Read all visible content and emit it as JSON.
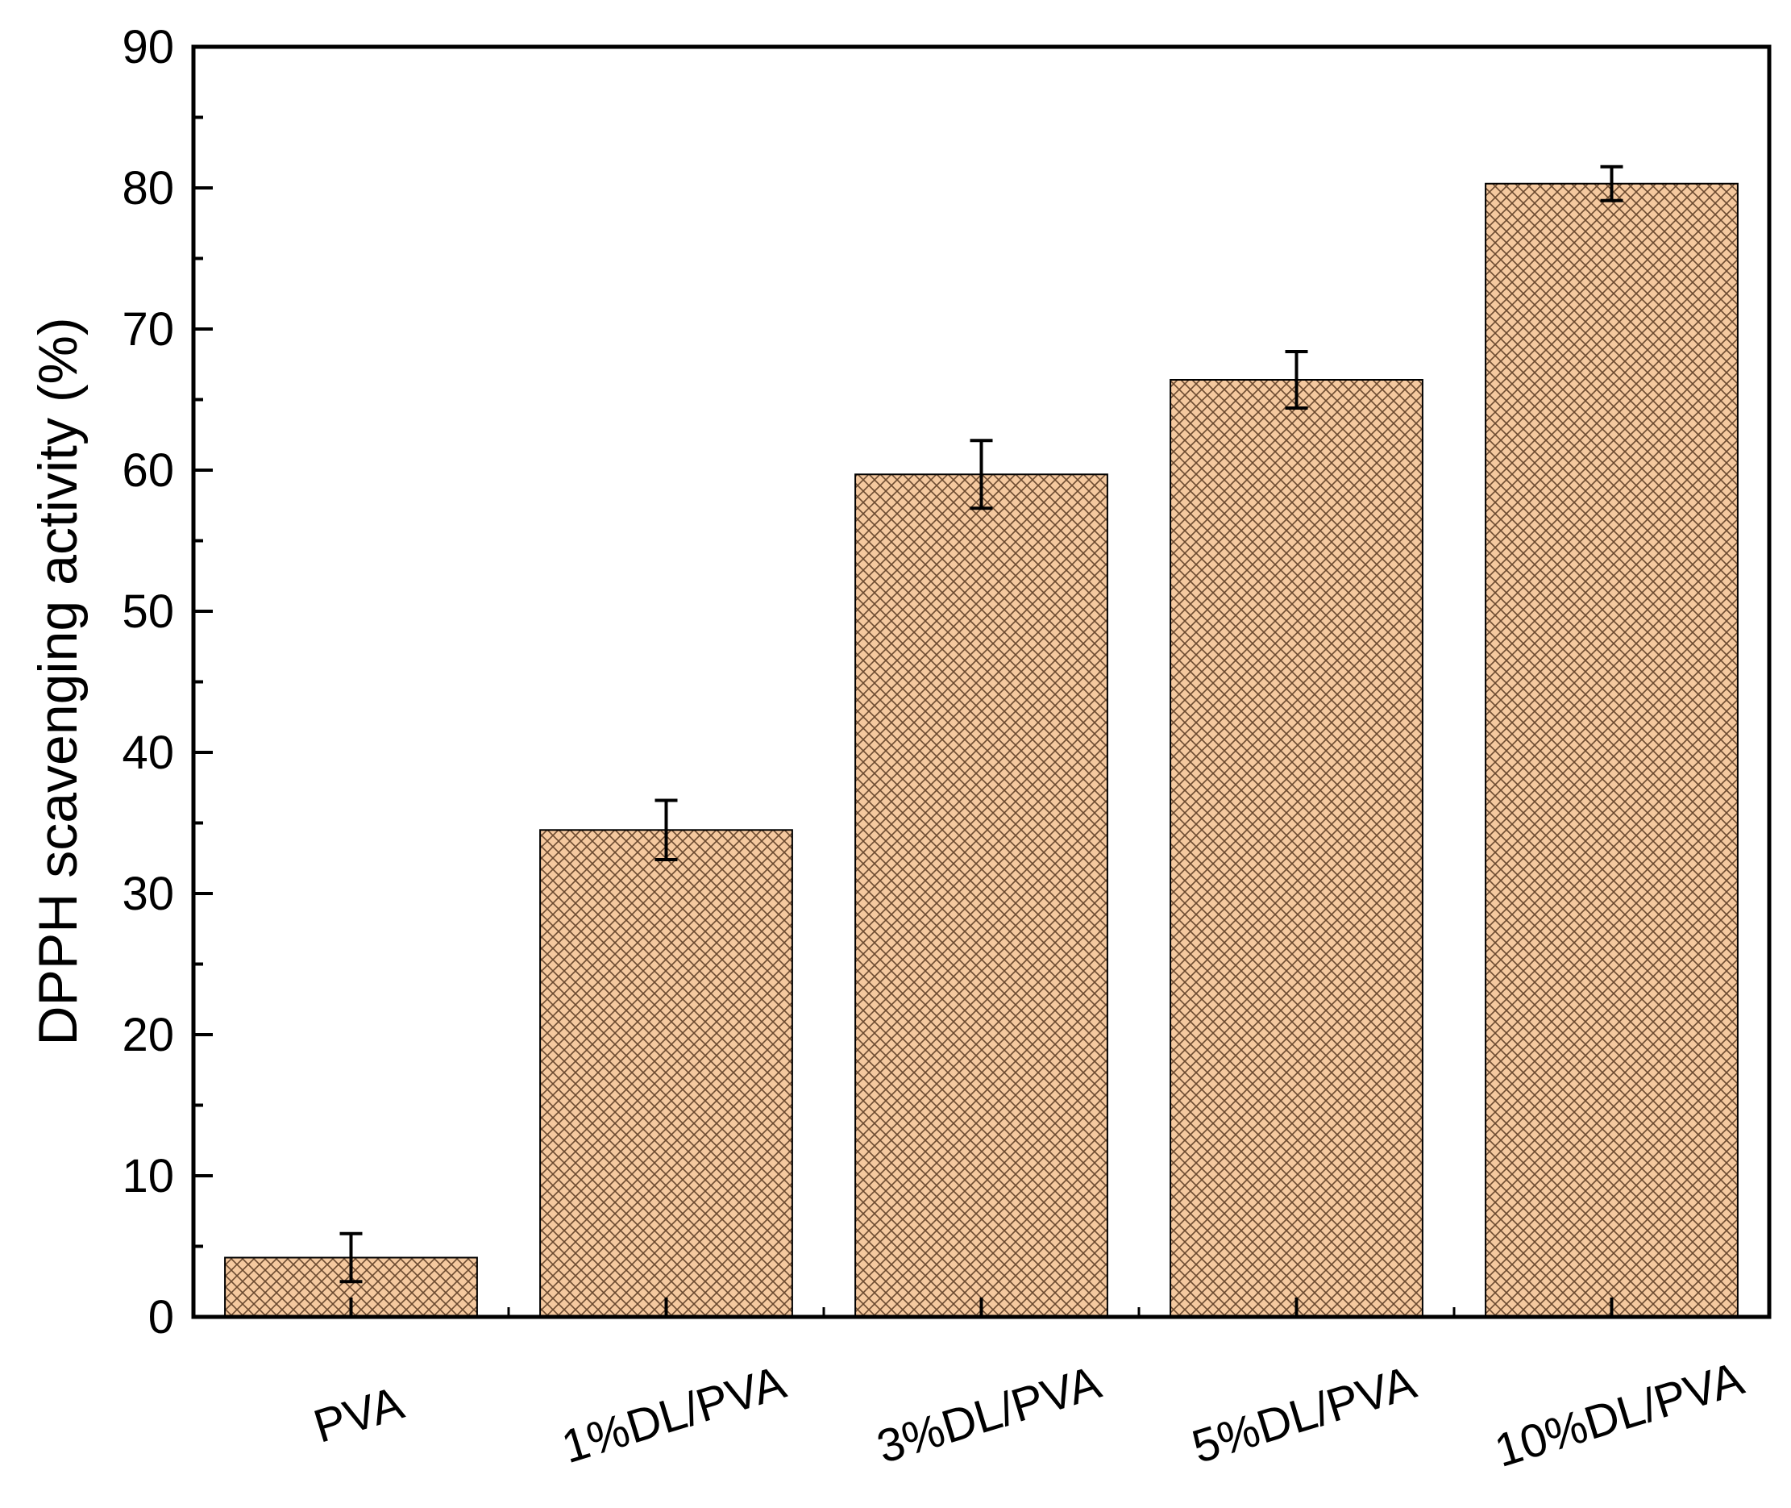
{
  "chart_data": {
    "type": "bar",
    "title": "",
    "xlabel": "",
    "ylabel": "DPPH scavenging activity (%)",
    "ylim": [
      0,
      90
    ],
    "yticks": [
      0,
      10,
      20,
      30,
      40,
      50,
      60,
      70,
      80,
      90
    ],
    "categories": [
      "PVA",
      "1%DL/PVA",
      "3%DL/PVA",
      "5%DL/PVA",
      "10%DL/PVA"
    ],
    "values": [
      4.2,
      34.5,
      59.7,
      66.4,
      80.3
    ],
    "errors": [
      1.7,
      2.1,
      2.4,
      2.0,
      1.2
    ],
    "grid": false,
    "legend": "none",
    "bar_fill": "#f5c99f",
    "bar_hatch": "crosshatch",
    "bar_edge": "#000000"
  }
}
